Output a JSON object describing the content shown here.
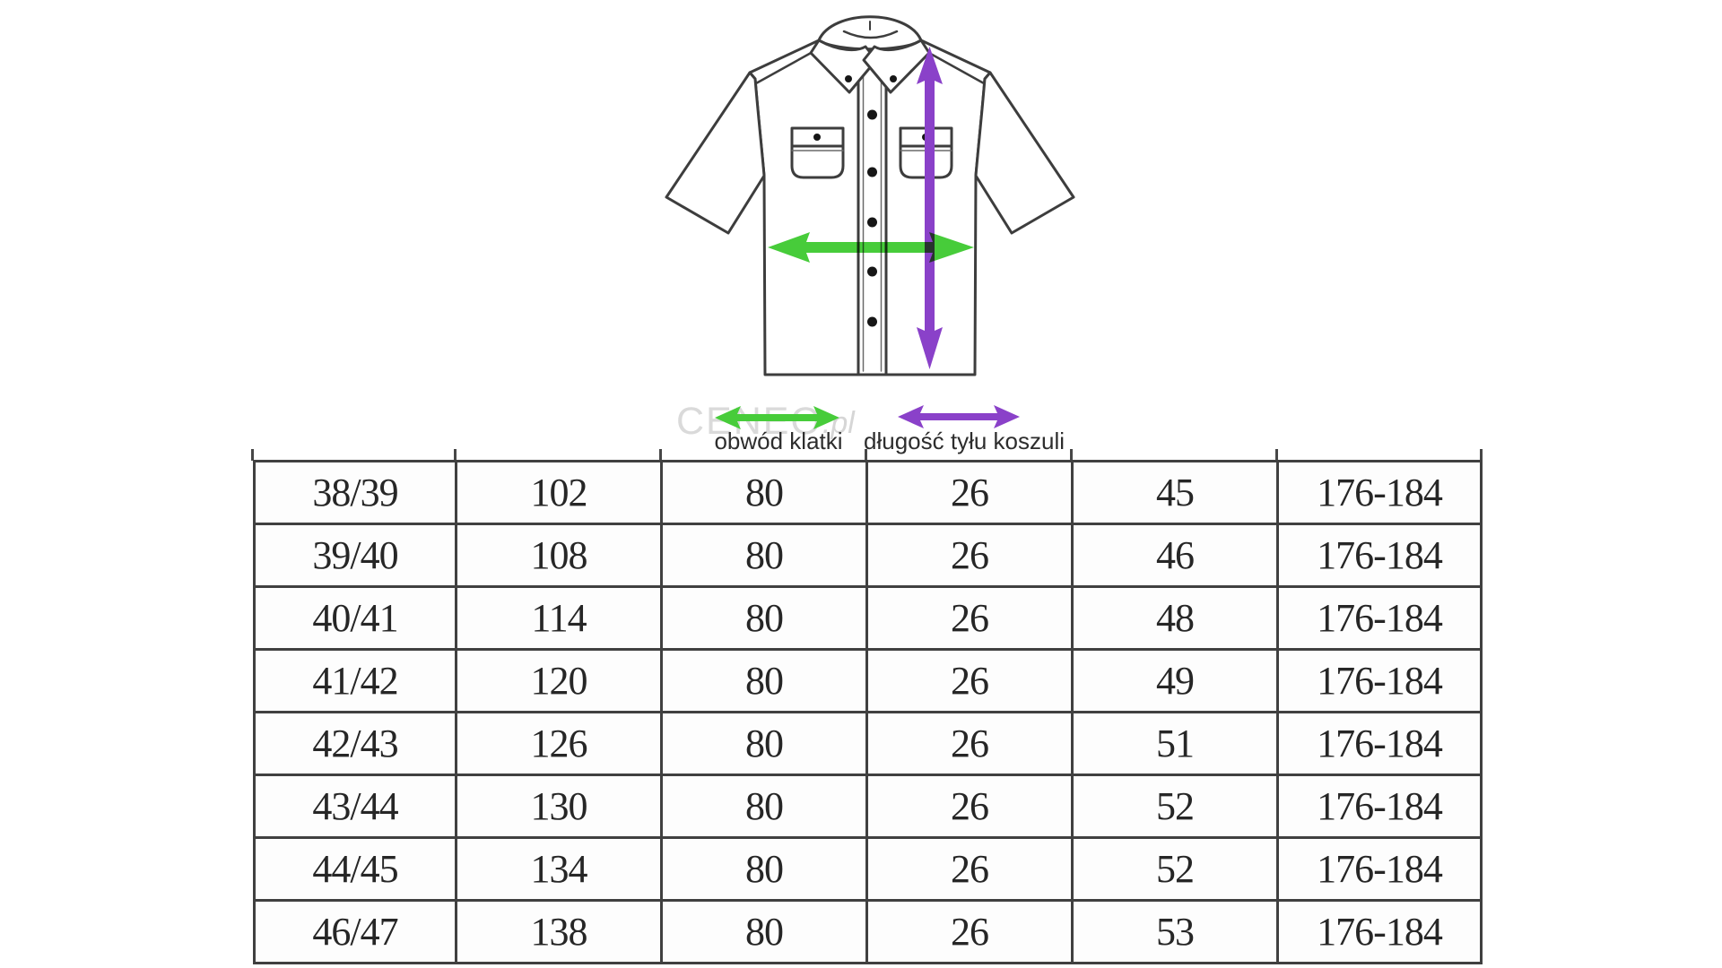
{
  "watermark": {
    "text": "CENEO",
    "suffix": ".pl"
  },
  "diagram": {
    "shirt": "short-sleeve-uniform-shirt-line-drawing",
    "chest_label": "obwód klatki",
    "back_length_label": "długość tyłu koszuli",
    "colors": {
      "chest_arrow": "#47cc3a",
      "back_length_arrow": "#8a41c9",
      "outline": "#3d3d3d",
      "button": "#161616"
    }
  },
  "size_table": {
    "rows": [
      [
        "38/39",
        "102",
        "80",
        "26",
        "45",
        "176-184"
      ],
      [
        "39/40",
        "108",
        "80",
        "26",
        "46",
        "176-184"
      ],
      [
        "40/41",
        "114",
        "80",
        "26",
        "48",
        "176-184"
      ],
      [
        "41/42",
        "120",
        "80",
        "26",
        "49",
        "176-184"
      ],
      [
        "42/43",
        "126",
        "80",
        "26",
        "51",
        "176-184"
      ],
      [
        "43/44",
        "130",
        "80",
        "26",
        "52",
        "176-184"
      ],
      [
        "44/45",
        "134",
        "80",
        "26",
        "52",
        "176-184"
      ],
      [
        "46/47",
        "138",
        "80",
        "26",
        "53",
        "176-184"
      ]
    ]
  },
  "chart_data": {
    "type": "table",
    "legend": [
      "obwód klatki",
      "długość tyłu koszuli"
    ],
    "rows": [
      [
        "38/39",
        "102",
        "80",
        "26",
        "45",
        "176-184"
      ],
      [
        "39/40",
        "108",
        "80",
        "26",
        "46",
        "176-184"
      ],
      [
        "40/41",
        "114",
        "80",
        "26",
        "48",
        "176-184"
      ],
      [
        "41/42",
        "120",
        "80",
        "26",
        "49",
        "176-184"
      ],
      [
        "42/43",
        "126",
        "80",
        "26",
        "51",
        "176-184"
      ],
      [
        "43/44",
        "130",
        "80",
        "26",
        "52",
        "176-184"
      ],
      [
        "44/45",
        "134",
        "80",
        "26",
        "52",
        "176-184"
      ],
      [
        "46/47",
        "138",
        "80",
        "26",
        "53",
        "176-184"
      ]
    ]
  }
}
